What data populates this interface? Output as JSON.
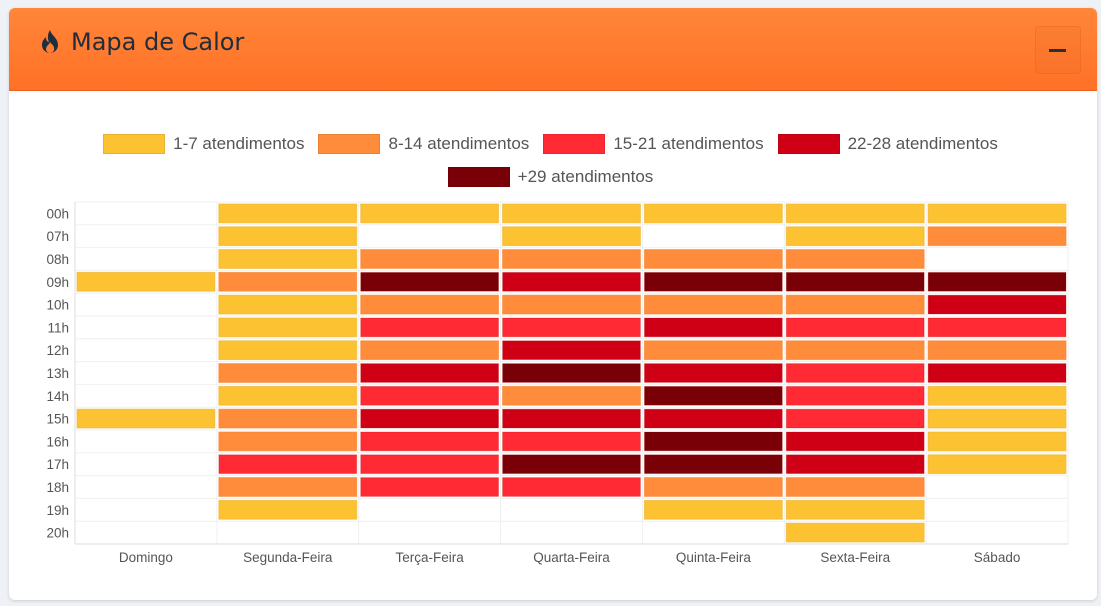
{
  "panel": {
    "title": "Mapa de Calor",
    "icon": "fire-icon",
    "minimize_icon": "minus-icon"
  },
  "chart_data": {
    "type": "heatmap",
    "title": "",
    "xlabel": "",
    "ylabel": "",
    "x_categories": [
      "Domingo",
      "Segunda-Feira",
      "Terça-Feira",
      "Quarta-Feira",
      "Quinta-Feira",
      "Sexta-Feira",
      "Sábado"
    ],
    "y_categories": [
      "00h",
      "07h",
      "08h",
      "09h",
      "10h",
      "11h",
      "12h",
      "13h",
      "14h",
      "15h",
      "16h",
      "17h",
      "18h",
      "19h",
      "20h"
    ],
    "legend": [
      {
        "label": "1-7 atendimentos",
        "color": "#fdc232"
      },
      {
        "label": "8-14 atendimentos",
        "color": "#fe8c3a"
      },
      {
        "label": "15-21 atendimentos",
        "color": "#ff2a33"
      },
      {
        "label": "22-28 atendimentos",
        "color": "#cf0015"
      },
      {
        "label": "+29 atendimentos",
        "color": "#7a0008"
      }
    ],
    "legend_position": "top",
    "values_note_levels": "0 = none, 1-5 = legend band index",
    "values": [
      [
        0,
        1,
        1,
        1,
        1,
        1,
        1
      ],
      [
        0,
        1,
        0,
        1,
        0,
        1,
        2
      ],
      [
        0,
        1,
        2,
        2,
        2,
        2,
        0
      ],
      [
        1,
        2,
        5,
        4,
        5,
        5,
        5
      ],
      [
        0,
        1,
        2,
        2,
        2,
        2,
        4
      ],
      [
        0,
        1,
        3,
        3,
        4,
        3,
        3
      ],
      [
        0,
        1,
        2,
        4,
        2,
        2,
        2
      ],
      [
        0,
        2,
        4,
        5,
        4,
        3,
        4
      ],
      [
        0,
        1,
        3,
        2,
        5,
        3,
        1
      ],
      [
        1,
        2,
        4,
        4,
        4,
        3,
        1
      ],
      [
        0,
        2,
        3,
        3,
        5,
        4,
        1
      ],
      [
        0,
        3,
        3,
        5,
        5,
        4,
        1
      ],
      [
        0,
        2,
        3,
        3,
        2,
        2,
        0
      ],
      [
        0,
        1,
        0,
        0,
        1,
        1,
        0
      ],
      [
        0,
        0,
        0,
        0,
        0,
        1,
        0
      ]
    ]
  }
}
